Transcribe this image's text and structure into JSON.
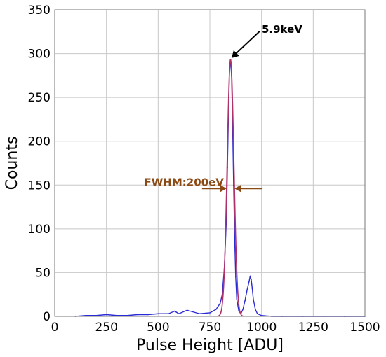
{
  "chart_data": {
    "type": "line",
    "title": "",
    "xlabel": "Pulse Height [ADU]",
    "ylabel": "Counts",
    "xlim": [
      0,
      1500
    ],
    "ylim": [
      0,
      350
    ],
    "x_ticks": [
      0,
      250,
      500,
      750,
      1000,
      1250,
      1500
    ],
    "y_ticks": [
      0,
      50,
      100,
      150,
      200,
      250,
      300,
      350
    ],
    "grid": true,
    "legend": "none",
    "colors": {
      "series": "#2b2bd6",
      "fit": "#b0306a",
      "fwhm_annotation": "#8b4a14",
      "peak_arrow": "#000000",
      "grid": "#c8c8c8"
    },
    "series": [
      {
        "x": [
          100,
          150,
          200,
          250,
          300,
          350,
          400,
          450,
          500,
          550,
          580,
          600,
          640,
          700,
          750,
          780,
          800,
          810,
          820,
          830,
          835,
          840,
          845,
          850,
          855,
          860,
          865,
          870,
          875,
          880,
          890,
          900,
          910,
          920,
          930,
          940,
          945,
          950,
          955,
          960,
          970,
          980,
          1000,
          1050,
          1100,
          1200,
          1300,
          1400,
          1500
        ],
        "values": [
          0,
          1,
          1,
          2,
          1,
          1,
          2,
          2,
          3,
          3,
          6,
          3,
          7,
          3,
          4,
          8,
          15,
          25,
          55,
          110,
          170,
          230,
          280,
          293,
          275,
          220,
          150,
          90,
          45,
          20,
          6,
          3,
          8,
          18,
          30,
          40,
          46,
          42,
          32,
          20,
          8,
          3,
          1,
          0,
          0,
          0,
          0,
          0,
          0
        ]
      }
    ],
    "fit_curve": {
      "center": 850,
      "peak": 293,
      "fwhm": 38
    },
    "annotations": [
      {
        "text": "5.9keV",
        "points_to": {
          "x": 855,
          "y": 295
        }
      },
      {
        "text": "FWHM:200eV",
        "y": 146,
        "x_left": 831,
        "x_right": 869
      }
    ]
  }
}
